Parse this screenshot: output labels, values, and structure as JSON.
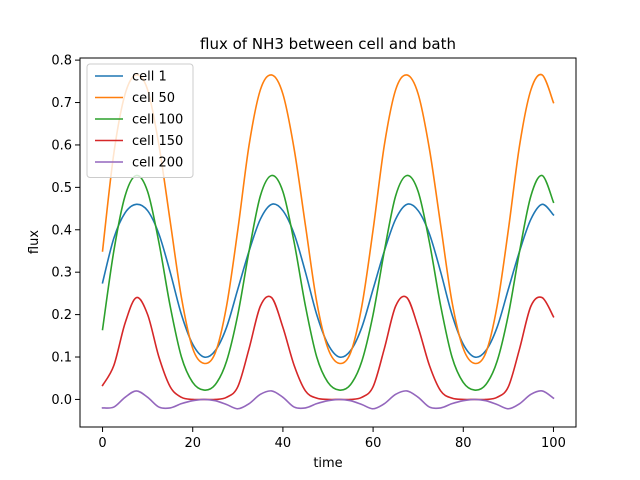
{
  "chart_data": {
    "type": "line",
    "title": "flux of NH3 between cell and bath",
    "xlabel": "time",
    "ylabel": "flux",
    "xlim": [
      -5,
      105
    ],
    "ylim": [
      -0.065,
      0.805
    ],
    "xticks": [
      0,
      20,
      40,
      60,
      80,
      100
    ],
    "yticks": [
      0.0,
      0.1,
      0.2,
      0.3,
      0.4,
      0.5,
      0.6,
      0.7,
      0.8
    ],
    "xtick_labels": [
      "0",
      "20",
      "40",
      "60",
      "80",
      "100"
    ],
    "ytick_labels": [
      "0.0",
      "0.1",
      "0.2",
      "0.3",
      "0.4",
      "0.5",
      "0.6",
      "0.7",
      "0.8"
    ],
    "grid": false,
    "legend_position": "upper-left",
    "x": [
      0,
      2.5,
      5,
      7.5,
      10,
      12.5,
      15,
      17.5,
      20,
      22.5,
      25,
      27.5,
      30,
      32.5,
      35,
      37.5,
      40,
      42.5,
      45,
      47.5,
      50,
      52.5,
      55,
      57.5,
      60,
      62.5,
      65,
      67.5,
      70,
      72.5,
      75,
      77.5,
      80,
      82.5,
      85,
      87.5,
      90,
      92.5,
      95,
      97.5,
      100
    ],
    "series": [
      {
        "name": "cell 1",
        "color": "#1f77b4",
        "values": [
          0.275,
          0.38,
          0.44,
          0.46,
          0.445,
          0.39,
          0.3,
          0.2,
          0.13,
          0.1,
          0.115,
          0.17,
          0.26,
          0.35,
          0.425,
          0.46,
          0.445,
          0.39,
          0.3,
          0.2,
          0.13,
          0.1,
          0.115,
          0.17,
          0.26,
          0.35,
          0.425,
          0.46,
          0.445,
          0.39,
          0.3,
          0.2,
          0.13,
          0.1,
          0.115,
          0.17,
          0.26,
          0.35,
          0.425,
          0.46,
          0.435
        ]
      },
      {
        "name": "cell 50",
        "color": "#ff7f0e",
        "values": [
          0.35,
          0.58,
          0.72,
          0.765,
          0.73,
          0.6,
          0.42,
          0.24,
          0.12,
          0.085,
          0.11,
          0.22,
          0.4,
          0.6,
          0.73,
          0.765,
          0.72,
          0.59,
          0.41,
          0.23,
          0.12,
          0.085,
          0.11,
          0.22,
          0.4,
          0.6,
          0.73,
          0.765,
          0.72,
          0.59,
          0.41,
          0.23,
          0.12,
          0.085,
          0.11,
          0.22,
          0.4,
          0.6,
          0.73,
          0.765,
          0.7
        ]
      },
      {
        "name": "cell 100",
        "color": "#2ca02c",
        "values": [
          0.165,
          0.35,
          0.48,
          0.528,
          0.49,
          0.37,
          0.22,
          0.1,
          0.04,
          0.022,
          0.035,
          0.09,
          0.2,
          0.35,
          0.48,
          0.528,
          0.49,
          0.37,
          0.22,
          0.1,
          0.04,
          0.022,
          0.035,
          0.09,
          0.2,
          0.35,
          0.48,
          0.528,
          0.49,
          0.37,
          0.22,
          0.1,
          0.04,
          0.022,
          0.035,
          0.09,
          0.2,
          0.35,
          0.48,
          0.528,
          0.465
        ]
      },
      {
        "name": "cell 150",
        "color": "#d62728",
        "values": [
          0.033,
          0.08,
          0.18,
          0.24,
          0.2,
          0.1,
          0.03,
          0.005,
          0.0,
          0.0,
          0.0,
          0.005,
          0.03,
          0.12,
          0.22,
          0.24,
          0.17,
          0.08,
          0.02,
          0.003,
          0.0,
          0.0,
          0.0,
          0.005,
          0.03,
          0.12,
          0.22,
          0.24,
          0.17,
          0.08,
          0.02,
          0.003,
          0.0,
          0.0,
          0.0,
          0.005,
          0.03,
          0.12,
          0.22,
          0.24,
          0.195
        ]
      },
      {
        "name": "cell 200",
        "color": "#9467bd",
        "values": [
          -0.02,
          -0.018,
          0.005,
          0.02,
          0.005,
          -0.018,
          -0.02,
          -0.01,
          -0.003,
          0.0,
          -0.003,
          -0.012,
          -0.022,
          -0.01,
          0.012,
          0.02,
          0.005,
          -0.018,
          -0.02,
          -0.01,
          -0.003,
          0.0,
          -0.003,
          -0.012,
          -0.022,
          -0.01,
          0.012,
          0.02,
          0.005,
          -0.018,
          -0.02,
          -0.01,
          -0.003,
          0.0,
          -0.003,
          -0.012,
          -0.022,
          -0.01,
          0.012,
          0.02,
          0.003
        ]
      }
    ]
  }
}
